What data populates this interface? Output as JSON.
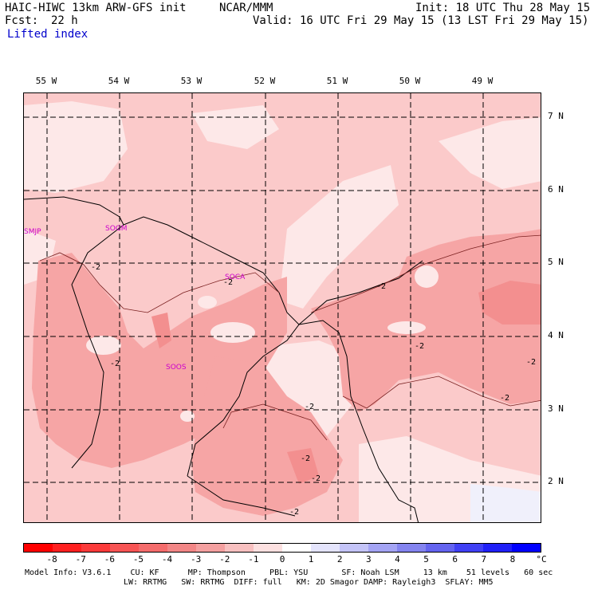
{
  "header": {
    "model": "HAIC-HIWC 13km ARW-GFS init",
    "center": "NCAR/MMM",
    "init": "Init: 18 UTC Thu 28 May 15",
    "fcst_label": "Fcst:",
    "fcst_value": "22 h",
    "valid": "Valid: 16 UTC Fri 29 May 15 (13 LST Fri 29 May 15)",
    "field": "Lifted index"
  },
  "map": {
    "lon_labels": [
      "55 W",
      "54 W",
      "53 W",
      "52 W",
      "51 W",
      "50 W",
      "49 W"
    ],
    "lat_labels": [
      "7 N",
      "6 N",
      "5 N",
      "4 N",
      "3 N",
      "2 N"
    ],
    "stations": [
      "SMJP",
      "SOGM",
      "SOCA",
      "SOOS"
    ],
    "contour_labels": [
      "-2",
      "-2",
      "-2",
      "-2",
      "-2",
      "-2",
      "-2",
      "-2",
      "-2",
      "-2",
      "-2"
    ],
    "colors": {
      "very_light": "#fde8e8",
      "light": "#fbcaca",
      "medium": "#f6a5a5",
      "darker": "#f38f8f",
      "station": "#cc00cc"
    }
  },
  "colorbar": {
    "ticks": [
      "-8",
      "-7",
      "-6",
      "-5",
      "-4",
      "-3",
      "-2",
      "-1",
      "0",
      "1",
      "2",
      "3",
      "4",
      "5",
      "6",
      "7",
      "8"
    ],
    "unit": "°C",
    "colors": [
      "#ff0000",
      "#ff2020",
      "#fb3a3a",
      "#f75454",
      "#f46c6c",
      "#f28686",
      "#f4a0a0",
      "#f8c0c0",
      "#fce0e0",
      "#ffffff",
      "#e4e4fc",
      "#c4c4f8",
      "#a4a4f4",
      "#8484f0",
      "#6464f0",
      "#4040f4",
      "#2020f8",
      "#0000ff"
    ]
  },
  "footer": {
    "line1": "Model Info: V3.6.1    CU: KF      MP: Thompson     PBL: YSU       SF: Noah LSM     13 km    51 levels   60 sec",
    "line2": "LW: RRTMG   SW: RRTMG  DIFF: full   KM: 2D Smagor DAMP: Rayleigh3  SFLAY: MM5"
  }
}
